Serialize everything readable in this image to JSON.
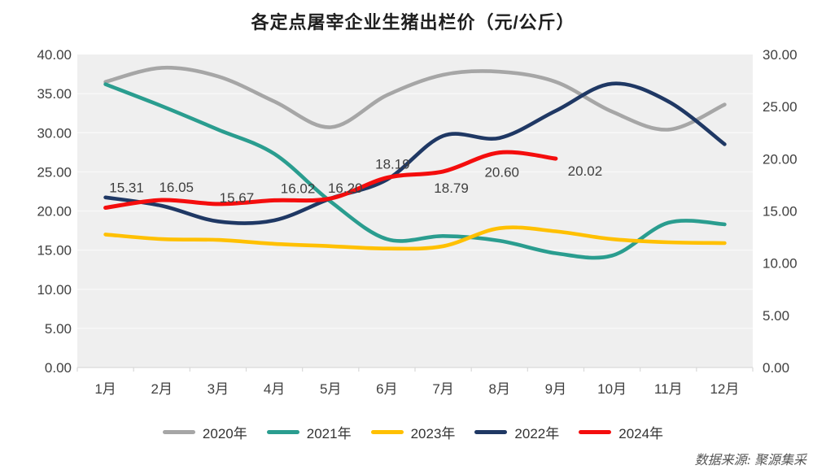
{
  "title": "各定点屠宰企业生猪出栏价（元/公斤）",
  "source": "数据来源: 聚源集采",
  "chart_data": {
    "type": "line",
    "categories": [
      "1月",
      "2月",
      "3月",
      "4月",
      "5月",
      "6月",
      "7月",
      "8月",
      "9月",
      "10月",
      "11月",
      "12月"
    ],
    "gridlines": "horizontal",
    "legend_position": "bottom",
    "plot_bg_color": "#efefef",
    "left_axis": {
      "min": 0,
      "max": 40,
      "step": 5,
      "tick_labels": [
        "0.00",
        "5.00",
        "10.00",
        "15.00",
        "20.00",
        "25.00",
        "30.00",
        "35.00",
        "40.00"
      ]
    },
    "right_axis": {
      "min": 0,
      "max": 30,
      "step": 5,
      "tick_labels": [
        "0.00",
        "5.00",
        "10.00",
        "15.00",
        "20.00",
        "25.00",
        "30.00"
      ]
    },
    "series": [
      {
        "name": "2020年",
        "color": "#a6a6a6",
        "axis": "left",
        "values": [
          36.5,
          38.3,
          37.2,
          34.0,
          30.7,
          34.8,
          37.4,
          37.8,
          36.5,
          32.7,
          30.4,
          33.6
        ]
      },
      {
        "name": "2021年",
        "color": "#2a9d8f",
        "axis": "left",
        "values": [
          36.2,
          33.4,
          30.4,
          27.3,
          21.2,
          16.4,
          16.8,
          16.2,
          14.6,
          14.3,
          18.5,
          18.3
        ]
      },
      {
        "name": "2023年",
        "color": "#ffc000",
        "axis": "left",
        "values": [
          17.0,
          16.4,
          16.3,
          15.8,
          15.5,
          15.2,
          15.5,
          17.8,
          17.4,
          16.4,
          16.0,
          15.9
        ]
      },
      {
        "name": "2022年",
        "color": "#1f3864",
        "axis": "right",
        "values": [
          16.3,
          15.5,
          14.0,
          14.1,
          16.2,
          18.0,
          22.2,
          22.0,
          24.6,
          27.2,
          25.5,
          21.4
        ]
      },
      {
        "name": "2024年",
        "color": "#f40d0d",
        "axis": "right",
        "values": [
          15.31,
          16.05,
          15.67,
          16.02,
          16.2,
          18.19,
          18.79,
          20.6,
          20.02
        ],
        "data_labels": [
          "15.31",
          "16.05",
          "15.67",
          "16.02",
          "16.20",
          "18.19",
          "18.79",
          "20.60",
          "20.02"
        ]
      }
    ]
  }
}
